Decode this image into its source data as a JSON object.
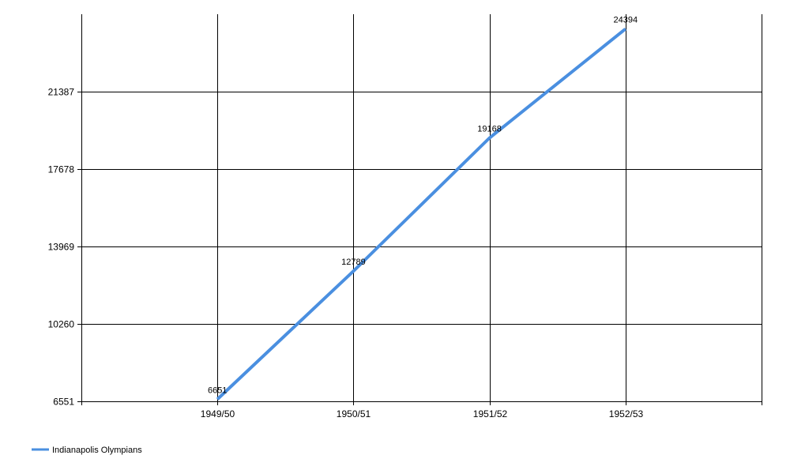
{
  "chart_data": {
    "type": "line",
    "categories": [
      "1949/50",
      "1950/51",
      "1951/52",
      "1952/53"
    ],
    "series": [
      {
        "name": "Indianapolis Olympians",
        "values": [
          6651,
          12789,
          19168,
          24394
        ]
      }
    ],
    "y_ticks": [
      6551,
      10260,
      13969,
      17678,
      21387
    ],
    "ylim": [
      6551,
      25096
    ],
    "grid": true,
    "legend_position": "bottom-left",
    "colors": {
      "series": "#4a8fe0",
      "grid": "#000000"
    }
  }
}
